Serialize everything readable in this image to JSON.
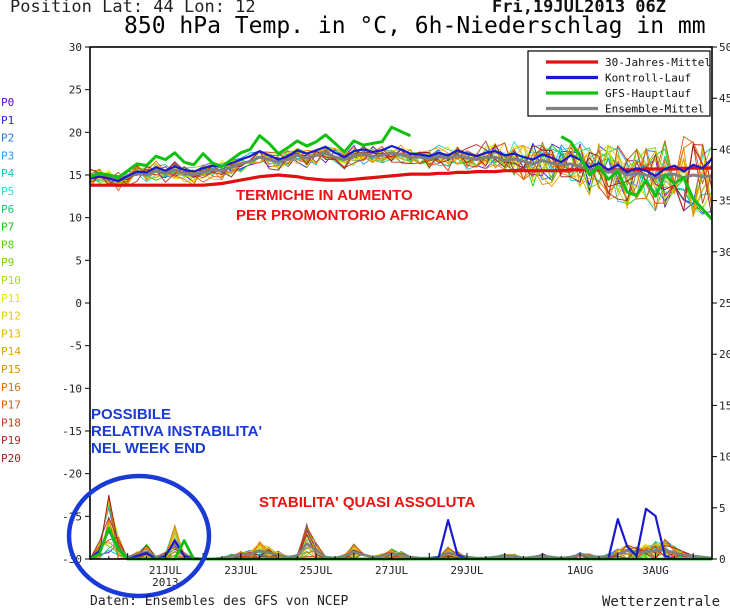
{
  "header": {
    "position": "Position   Lat: 44 Lon: 12",
    "date": "Fri,19JUL2013 06Z",
    "title": "850 hPa Temp. in °C, 6h-Niederschlag in mm"
  },
  "footer": {
    "source": "Daten: Ensembles des GFS von NCEP",
    "brand": "Wetterzentrale"
  },
  "annotations": {
    "warming": [
      "TERMICHE IN AUMENTO",
      "PER PROMONTORIO AFRICANO"
    ],
    "instability": [
      "POSSIBILE",
      "RELATIVA INSTABILITA'",
      "NEL WEEK END"
    ],
    "stability": "STABILITA' QUASI ASSOLUTA"
  },
  "colors": {
    "climate": "#e01010",
    "control": "#1a1acc",
    "gfs": "#10c010",
    "mean": "#808080",
    "annotation_red": "#ee1111",
    "annotation_blue": "#1a3ad6"
  },
  "chart_data": {
    "type": "line",
    "left_axis": {
      "min": -30,
      "max": 30,
      "ticks": [
        30,
        25,
        20,
        15,
        10,
        5,
        0,
        -5,
        -10,
        -15,
        -20,
        -25,
        -30
      ]
    },
    "right_axis": {
      "min": 0,
      "max": 50,
      "ticks": [
        50,
        45,
        40,
        35,
        30,
        25,
        20,
        15,
        10,
        5,
        0
      ]
    },
    "x_ticks": [
      {
        "label": "21JUL",
        "day": 2
      },
      {
        "label": "23JUL",
        "day": 4
      },
      {
        "label": "25JUL",
        "day": 6
      },
      {
        "label": "27JUL",
        "day": 8
      },
      {
        "label": "29JUL",
        "day": 10
      },
      {
        "label": "1AUG",
        "day": 13
      },
      {
        "label": "3AUG",
        "day": 15
      }
    ],
    "x_year": "2013",
    "x_range_days": [
      0,
      16.5
    ],
    "members": [
      "P0",
      "P1",
      "P2",
      "P3",
      "P4",
      "P5",
      "P6",
      "P7",
      "P8",
      "P9",
      "P10",
      "P11",
      "P12",
      "P13",
      "P14",
      "P15",
      "P16",
      "P17",
      "P18",
      "P19",
      "P20"
    ],
    "member_colors": [
      "#5a0ac8",
      "#2828e6",
      "#1e78dc",
      "#1ea0e6",
      "#14c3c8",
      "#28dcdc",
      "#14c878",
      "#14c814",
      "#50d214",
      "#78d214",
      "#aadc14",
      "#e6e614",
      "#e6c800",
      "#e6b400",
      "#e6a000",
      "#e68c00",
      "#e66e00",
      "#dc5a14",
      "#c83c14",
      "#b42828",
      "#a01e1e"
    ],
    "legend": [
      {
        "name": "30-Jahres-Mittel",
        "color": "#e01010"
      },
      {
        "name": "Kontroll-Lauf",
        "color": "#1a1acc"
      },
      {
        "name": "GFS-Hauptlauf",
        "color": "#10c010"
      },
      {
        "name": "Ensemble-Mittel",
        "color": "#808080"
      }
    ],
    "temp_x": [
      0,
      0.25,
      0.5,
      0.75,
      1,
      1.25,
      1.5,
      1.75,
      2,
      2.25,
      2.5,
      2.75,
      3,
      3.25,
      3.5,
      3.75,
      4,
      4.25,
      4.5,
      4.75,
      5,
      5.25,
      5.5,
      5.75,
      6,
      6.25,
      6.5,
      6.75,
      7,
      7.25,
      7.5,
      7.75,
      8,
      8.25,
      8.5,
      8.75,
      9,
      9.25,
      9.5,
      9.75,
      10,
      10.25,
      10.5,
      10.75,
      11,
      11.25,
      11.5,
      11.75,
      12,
      12.25,
      12.5,
      12.75,
      13,
      13.25,
      13.5,
      13.75,
      14,
      14.25,
      14.5,
      14.75,
      15,
      15.25,
      15.5,
      15.75,
      16,
      16.25,
      16.5
    ],
    "climate_mean": [
      13.8,
      13.8,
      13.8,
      13.8,
      13.8,
      13.8,
      13.8,
      13.8,
      13.8,
      13.8,
      13.8,
      13.8,
      13.8,
      13.9,
      14.0,
      14.2,
      14.4,
      14.6,
      14.8,
      14.9,
      15.0,
      14.9,
      14.8,
      14.6,
      14.5,
      14.4,
      14.4,
      14.4,
      14.5,
      14.6,
      14.7,
      14.8,
      14.9,
      15.0,
      15.1,
      15.1,
      15.1,
      15.2,
      15.2,
      15.3,
      15.3,
      15.4,
      15.4,
      15.4,
      15.5,
      15.5,
      15.5,
      15.5,
      15.5,
      15.5,
      15.5,
      15.6,
      15.6,
      15.6,
      15.6,
      15.6,
      15.6,
      15.6,
      15.6,
      15.7,
      15.7,
      15.7,
      15.7,
      15.8,
      15.8,
      15.8,
      15.8
    ],
    "gfs_temp": [
      14.8,
      15.2,
      15.0,
      14.7,
      15.5,
      16.3,
      16.1,
      17.2,
      16.8,
      17.6,
      16.5,
      16.2,
      17.5,
      16.4,
      16.0,
      16.8,
      17.6,
      18.0,
      19.6,
      18.7,
      17.5,
      18.2,
      19.0,
      18.4,
      18.9,
      19.7,
      18.7,
      17.7,
      19.0,
      18.5,
      18.7,
      18.9,
      20.6,
      20.1,
      19.6,
      null,
      null,
      null,
      null,
      null,
      null,
      null,
      null,
      null,
      null,
      null,
      null,
      null,
      null,
      null,
      null,
      null,
      null,
      null,
      null,
      null,
      null,
      null,
      null,
      null,
      null,
      null,
      null,
      null,
      null,
      null,
      null
    ],
    "gfs_temp_late": [
      null,
      null,
      null,
      null,
      null,
      null,
      null,
      null,
      null,
      null,
      null,
      null,
      null,
      null,
      null,
      null,
      null,
      null,
      null,
      null,
      null,
      null,
      null,
      null,
      null,
      null,
      null,
      null,
      null,
      null,
      null,
      null,
      null,
      null,
      null,
      null,
      null,
      null,
      null,
      null,
      null,
      null,
      null,
      null,
      null,
      null,
      null,
      null,
      null,
      null,
      19.5,
      18.9,
      17.2,
      15.0,
      16.0,
      14.5,
      15.4,
      13.0,
      12.6,
      14.4,
      12.5,
      15.0,
      14.0,
      14.7,
      12.2,
      11.0,
      9.8
    ],
    "control_temp": [
      14.6,
      14.8,
      14.6,
      14.3,
      14.9,
      15.4,
      15.3,
      15.9,
      15.5,
      16.0,
      15.6,
      15.4,
      15.8,
      16.1,
      16.0,
      16.4,
      16.8,
      17.2,
      17.8,
      17.3,
      16.8,
      17.2,
      17.9,
      17.5,
      17.9,
      18.3,
      17.6,
      17.1,
      17.8,
      18.0,
      17.7,
      17.9,
      18.4,
      18.0,
      17.5,
      17.4,
      17.2,
      17.6,
      17.3,
      17.9,
      17.5,
      17.2,
      17.6,
      17.8,
      17.3,
      17.5,
      17.1,
      16.8,
      17.4,
      17.0,
      16.5,
      17.3,
      16.8,
      15.9,
      16.4,
      15.6,
      16.2,
      15.3,
      15.8,
      15.5,
      14.9,
      15.7,
      16.1,
      15.4,
      16.2,
      15.8,
      16.9
    ],
    "mean_temp": [
      14.7,
      14.9,
      14.6,
      14.3,
      14.8,
      15.2,
      15.0,
      15.5,
      15.2,
      15.6,
      15.2,
      15.0,
      15.4,
      15.6,
      15.5,
      15.9,
      16.3,
      16.6,
      17.1,
      16.8,
      16.5,
      16.8,
      17.3,
      17.0,
      17.3,
      17.6,
      17.1,
      16.8,
      17.3,
      17.5,
      17.2,
      17.3,
      17.6,
      17.4,
      17.1,
      17.1,
      16.9,
      17.2,
      17.0,
      17.3,
      17.0,
      16.8,
      17.1,
      17.1,
      16.7,
      16.9,
      16.6,
      16.3,
      16.7,
      16.4,
      16.2,
      16.3,
      16.0,
      15.6,
      15.8,
      15.3,
      15.6,
      15.0,
      15.2,
      15.0,
      14.6,
      15.0,
      15.1,
      14.7,
      15.0,
      14.8,
      14.9
    ],
    "precip_x": [
      0,
      0.25,
      0.5,
      0.75,
      1,
      1.25,
      1.5,
      1.75,
      2,
      2.25,
      2.5,
      2.75,
      3,
      3.25,
      3.5,
      3.75,
      4,
      4.25,
      4.5,
      4.75,
      5,
      5.25,
      5.5,
      5.75,
      6,
      6.25,
      6.5,
      6.75,
      7,
      7.25,
      7.5,
      7.75,
      8,
      8.25,
      8.5,
      8.75,
      9,
      9.25,
      9.5,
      9.75,
      10,
      10.25,
      10.5,
      10.75,
      11,
      11.25,
      11.5,
      11.75,
      12,
      12.25,
      12.5,
      12.75,
      13,
      13.25,
      13.5,
      13.75,
      14,
      14.25,
      14.5,
      14.75,
      15,
      15.25,
      15.5,
      15.75,
      16,
      16.25,
      16.5
    ],
    "gfs_precip": [
      0,
      0.5,
      3.0,
      1.0,
      0,
      0,
      0,
      0,
      0,
      0,
      0,
      0,
      0,
      0,
      0,
      0,
      0,
      0,
      0,
      0,
      0,
      0,
      0,
      0,
      0,
      0,
      0,
      0,
      0,
      0,
      0,
      0,
      0,
      0,
      0,
      0,
      0,
      0,
      0,
      0,
      0,
      0,
      0,
      0,
      0,
      0,
      0,
      0,
      0,
      0,
      0,
      0,
      0,
      0,
      0,
      0,
      0,
      0,
      0,
      0,
      0,
      0,
      0,
      0,
      0,
      0,
      0
    ],
    "gfs_precip_late": [
      null,
      null,
      null,
      null,
      null,
      null,
      null,
      null,
      null,
      null,
      null,
      null,
      null,
      null,
      null,
      null,
      null,
      null,
      null,
      null,
      null,
      null,
      null,
      null,
      null,
      null,
      null,
      null,
      null,
      null,
      null,
      null,
      null,
      null,
      null,
      null,
      null,
      null,
      null,
      null,
      null,
      null,
      null,
      null,
      null,
      null,
      null,
      null,
      null,
      null,
      0,
      0,
      0,
      0,
      0,
      0,
      0,
      0,
      0,
      0,
      0,
      0,
      0,
      0,
      0,
      0,
      0
    ],
    "gfs_precip_mid": [
      null,
      null,
      null,
      null,
      null,
      null,
      0,
      0,
      0,
      0,
      1.8,
      0,
      0,
      0,
      0,
      0,
      0,
      0,
      0,
      0,
      0,
      0,
      0,
      0,
      0,
      0,
      0,
      0,
      0,
      0,
      0,
      0,
      0,
      0,
      0,
      null,
      null,
      null,
      null,
      null,
      null,
      null,
      null,
      null,
      null,
      null,
      null,
      null,
      null,
      null,
      null,
      null,
      null,
      null,
      null,
      null,
      null,
      null,
      null,
      null,
      null,
      null,
      null,
      null,
      null,
      null,
      null
    ],
    "control_precip": [
      0,
      0.8,
      2.8,
      1.0,
      0,
      0.3,
      0.6,
      0,
      0.3,
      1.8,
      0.3,
      0,
      0,
      0,
      0,
      0,
      0,
      0,
      0,
      0,
      0,
      0,
      0,
      0,
      0,
      0,
      0,
      0,
      0,
      0,
      0,
      0,
      0,
      0,
      0,
      0,
      0,
      0.2,
      3.8,
      0.4,
      0,
      0,
      0,
      0,
      0,
      0,
      0,
      0,
      0,
      0,
      0,
      0,
      0,
      0,
      0,
      0,
      3.9,
      1.2,
      0.3,
      4.9,
      4.2,
      0.3,
      0,
      0,
      0,
      0,
      0
    ],
    "mean_precip": [
      0,
      0.8,
      2.9,
      1.1,
      0.2,
      0.4,
      0.7,
      0.2,
      0.4,
      1.5,
      0.4,
      0.1,
      0,
      0,
      0.1,
      0.3,
      0.4,
      0.5,
      0.8,
      0.6,
      0.4,
      0.2,
      0.3,
      1.5,
      0.8,
      0.2,
      0.1,
      0.3,
      0.7,
      0.4,
      0.2,
      0.3,
      0.5,
      0.4,
      0.2,
      0.1,
      0.1,
      0.2,
      0.6,
      0.4,
      0.2,
      0.1,
      0.1,
      0.2,
      0.3,
      0.3,
      0.1,
      0.2,
      0.3,
      0.2,
      0.1,
      0.2,
      0.4,
      0.3,
      0.2,
      0.3,
      0.5,
      0.8,
      0.6,
      0.7,
      0.8,
      0.9,
      0.6,
      0.4,
      0.3,
      0.2,
      0.1
    ]
  }
}
